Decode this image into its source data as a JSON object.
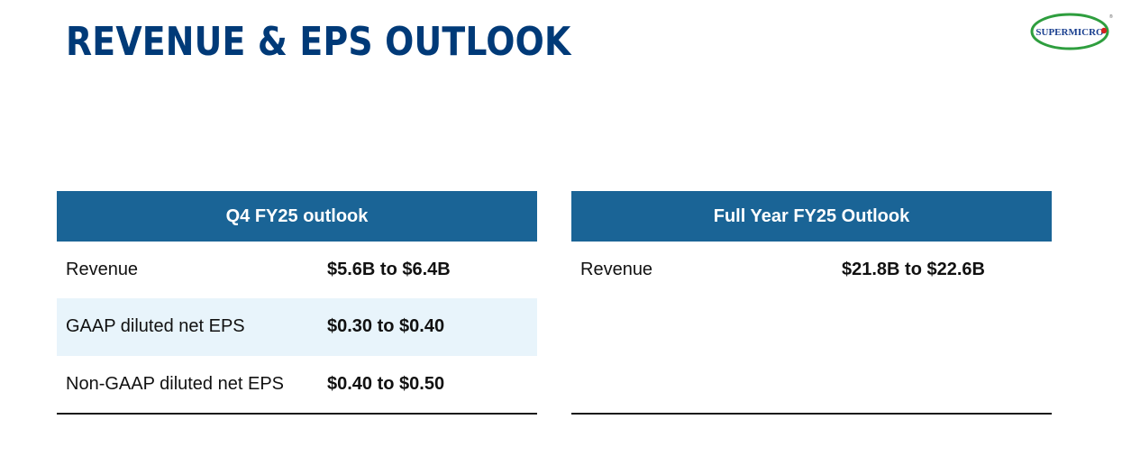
{
  "page": {
    "title": "REVENUE & EPS OUTLOOK"
  },
  "logo": {
    "text": "SUPERMICRO",
    "trademark": "®",
    "colors": {
      "ring": "#2e9e3e",
      "text": "#1a3f8f",
      "dot": "#d42020"
    }
  },
  "q4_outlook": {
    "header": "Q4 FY25 outlook",
    "rows": [
      {
        "label": "Revenue",
        "value": "$5.6B to $6.4B"
      },
      {
        "label": "GAAP diluted net EPS",
        "value": "$0.30 to $0.40"
      },
      {
        "label": "Non-GAAP diluted net EPS",
        "value": "$0.40 to $0.50"
      }
    ]
  },
  "full_year_outlook": {
    "header": "Full Year FY25 Outlook",
    "rows": [
      {
        "label": "Revenue",
        "value": "$21.8B to $22.6B"
      }
    ]
  },
  "colors": {
    "title": "#003a78",
    "header_bg": "#1a6496",
    "shaded_row": "#e8f4fb",
    "rule": "#1a1a1a"
  }
}
